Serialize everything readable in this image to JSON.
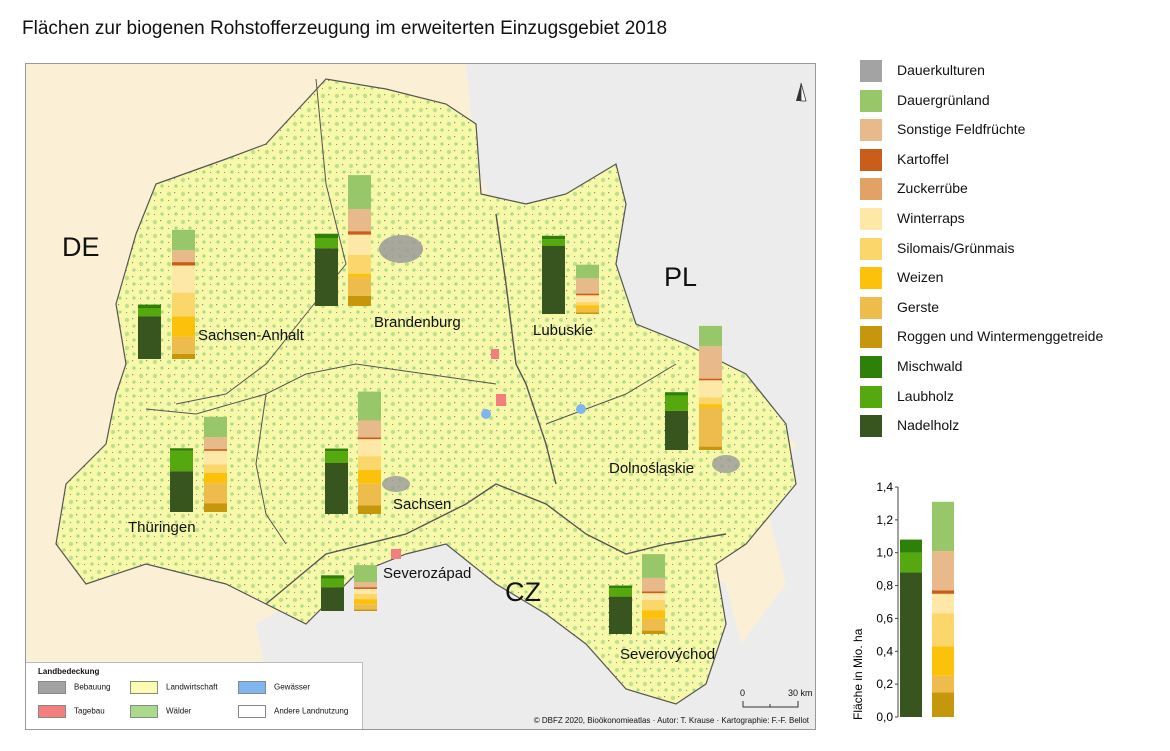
{
  "title": "Flächen zur biogenen Rohstofferzeugung im erweiterten Einzugsgebiet 2018",
  "countries": [
    {
      "label": "DE",
      "x": 62,
      "y": 170
    },
    {
      "label": "PL",
      "x": 640,
      "y": 200
    },
    {
      "label": "CZ",
      "x": 480,
      "y": 515
    }
  ],
  "categories": [
    {
      "name": "Dauerkulturen",
      "color": "#a3a3a3"
    },
    {
      "name": "Dauergrünland",
      "color": "#98c76a"
    },
    {
      "name": "Sonstige Feldfrüchte",
      "color": "#e8b98a"
    },
    {
      "name": "Kartoffel",
      "color": "#c95d1a"
    },
    {
      "name": "Zuckerrübe",
      "color": "#e3a265"
    },
    {
      "name": "Winterraps",
      "color": "#fde8a8"
    },
    {
      "name": "Silomais/Grünmais",
      "color": "#fbd66b"
    },
    {
      "name": "Weizen",
      "color": "#fcc20b"
    },
    {
      "name": "Gerste",
      "color": "#edbc4d"
    },
    {
      "name": "Roggen und Wintermenggetreide",
      "color": "#c6960c"
    },
    {
      "name": "Mischwald",
      "color": "#2f8009"
    },
    {
      "name": "Laubholz",
      "color": "#56a80f"
    },
    {
      "name": "Nadelholz",
      "color": "#38541f"
    }
  ],
  "regions": [
    {
      "name": "Sachsen-Anhalt",
      "forest": [
        0.11,
        0.25,
        0.05,
        0.02
      ],
      "agri": [
        0.0,
        0.12,
        0.07,
        0.02,
        0.0,
        0.16,
        0.14,
        0.12,
        0.1,
        0.03,
        0.08
      ]
    },
    {
      "name": "Brandenburg",
      "forest": [
        0.1,
        0.34,
        0.06,
        0.025
      ],
      "agri": [
        0.0,
        0.2,
        0.13,
        0.02,
        0.0,
        0.12,
        0.11,
        0.02,
        0.11,
        0.06,
        0.07
      ]
    },
    {
      "name": "Lubuskie",
      "forest": [
        0.08,
        0.4,
        0.04,
        0.02
      ],
      "agri": [
        0.0,
        0.08,
        0.09,
        0.01,
        0.0,
        0.04,
        0.02,
        0.02,
        0.02,
        0.01,
        0.02
      ]
    },
    {
      "name": "Dolnośląskie",
      "forest": [
        0.1,
        0.23,
        0.09,
        0.02
      ],
      "agri": [
        0.0,
        0.12,
        0.19,
        0.01,
        0.0,
        0.1,
        0.04,
        0.02,
        0.23,
        0.02,
        0.03
      ]
    },
    {
      "name": "Sachsen",
      "forest": [
        0.12,
        0.3,
        0.07,
        0.015
      ],
      "agri": [
        0.0,
        0.17,
        0.1,
        0.01,
        0.0,
        0.1,
        0.08,
        0.08,
        0.13,
        0.05,
        0.02
      ]
    },
    {
      "name": "Thüringen",
      "forest": [
        0.14,
        0.24,
        0.12,
        0.015
      ],
      "agri": [
        0.0,
        0.12,
        0.07,
        0.01,
        0.0,
        0.08,
        0.05,
        0.06,
        0.12,
        0.05,
        0.04
      ]
    },
    {
      "name": "Severozápad",
      "forest": [
        0.1,
        0.14,
        0.05,
        0.02
      ],
      "agri": [
        0.0,
        0.1,
        0.03,
        0.01,
        0.0,
        0.03,
        0.03,
        0.03,
        0.03,
        0.01,
        0.01
      ]
    },
    {
      "name": "Severovýchod",
      "forest": [
        0.1,
        0.22,
        0.05,
        0.015
      ],
      "agri": [
        0.0,
        0.14,
        0.08,
        0.01,
        0.0,
        0.04,
        0.06,
        0.05,
        0.07,
        0.02,
        0.03
      ]
    }
  ],
  "map_legend": {
    "title": "Landbedeckung",
    "items": [
      {
        "label": "Bebauung",
        "color": "#a3a3a3"
      },
      {
        "label": "Landwirtschaft",
        "color": "#fdfbb0"
      },
      {
        "label": "Gewässer",
        "color": "#7fb6ef"
      },
      {
        "label": "Tagebau",
        "color": "#f47e7e"
      },
      {
        "label": "Wälder",
        "color": "#a9d98a"
      },
      {
        "label": "Andere Landnutzung",
        "color": "#ffffff"
      }
    ]
  },
  "credit": "© DBFZ 2020, Bioökonomieatlas · Autor: T. Krause · Kartographie: F.-F. Bellot",
  "scale": {
    "zero": "0",
    "label": "30 km"
  },
  "north": "N",
  "chart_data": {
    "type": "bar",
    "title": "",
    "ylabel": "Fläche in Mio. ha",
    "ylim": [
      0,
      1.4
    ],
    "yticks": [
      "0,0",
      "0,2",
      "0,4",
      "0,6",
      "0,8",
      "1,0",
      "1,2",
      "1,4"
    ],
    "reference_bars": [
      {
        "kind": "forest",
        "total": 1.08,
        "segments": [
          {
            "category": "Nadelholz",
            "value": 0.88
          },
          {
            "category": "Laubholz",
            "value": 0.12
          },
          {
            "category": "Mischwald",
            "value": 0.08
          }
        ]
      },
      {
        "kind": "agriculture",
        "total": 1.31,
        "segments": [
          {
            "category": "Roggen und Wintermenggetreide",
            "value": 0.15
          },
          {
            "category": "Gerste",
            "value": 0.1
          },
          {
            "category": "Weizen",
            "value": 0.18
          },
          {
            "category": "Silomais/Grünmais",
            "value": 0.2
          },
          {
            "category": "Winterraps",
            "value": 0.12
          },
          {
            "category": "Zuckerrübe",
            "value": 0.0
          },
          {
            "category": "Kartoffel",
            "value": 0.02
          },
          {
            "category": "Sonstige Feldfrüchte",
            "value": 0.24
          },
          {
            "category": "Dauergrünland",
            "value": 0.3
          },
          {
            "category": "Dauerkulturen",
            "value": 0.0
          }
        ]
      }
    ]
  }
}
